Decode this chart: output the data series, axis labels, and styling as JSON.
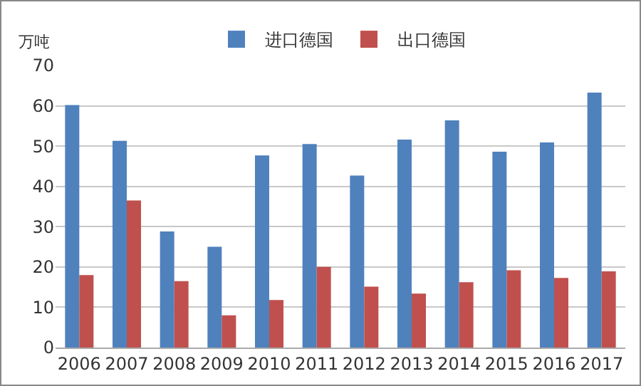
{
  "chart_data": {
    "type": "bar",
    "ylabel": "万吨",
    "categories": [
      "2006",
      "2007",
      "2008",
      "2009",
      "2010",
      "2011",
      "2012",
      "2013",
      "2014",
      "2015",
      "2016",
      "2017"
    ],
    "series": [
      {
        "name": "进口德国",
        "color": "#4f81bd",
        "values": [
          60.2,
          51.3,
          28.8,
          25,
          47.7,
          50.5,
          42.7,
          51.6,
          56.4,
          48.6,
          50.9,
          63.3
        ]
      },
      {
        "name": "出口德国",
        "color": "#c0504d",
        "values": [
          18,
          36.5,
          16.5,
          8,
          11.8,
          20,
          15.1,
          13.4,
          16.2,
          19.2,
          17.3,
          18.9
        ]
      }
    ],
    "ylim": [
      0,
      70
    ],
    "yticks": [
      0,
      10,
      20,
      30,
      40,
      50,
      60,
      70
    ],
    "grid": "y",
    "legend": "top"
  }
}
